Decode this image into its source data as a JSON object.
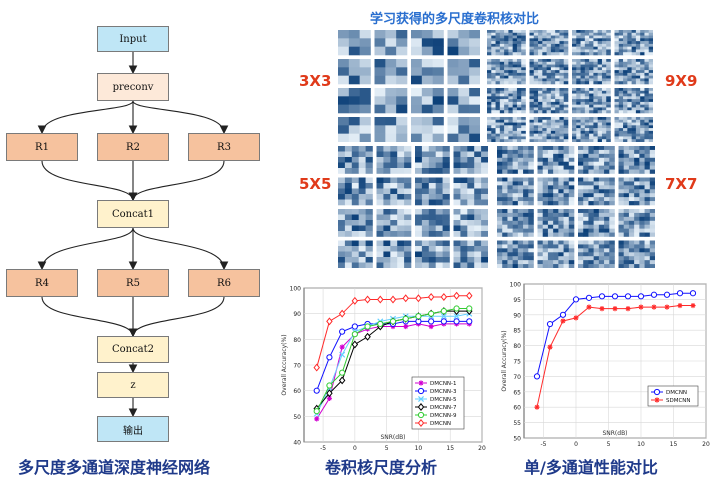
{
  "flowchart": {
    "input": "Input",
    "preconv": "preconv",
    "branches1": [
      "R1",
      "R2",
      "R3"
    ],
    "concat1": "Concat1",
    "branches2": [
      "R4",
      "R5",
      "R6"
    ],
    "concat2": "Concat2",
    "z": "z",
    "output": "输出"
  },
  "captions": {
    "network": "多尺度多通道深度神经网络",
    "kernel_analysis": "卷积核尺度分析",
    "channel_compare": "单/多通道性能对比"
  },
  "kernel_figure": {
    "title": "学习获得的多尺度卷积核对比",
    "labels": [
      "3X3",
      "9X9",
      "5X5",
      "7X7"
    ]
  },
  "colors": {
    "kernel_dark": "#0b3f78",
    "kernel_light": "#e6f0f8",
    "caption": "#1f3a8a",
    "kernel_label": "#e03a1a"
  },
  "chart_data": [
    {
      "type": "line",
      "x": [
        -6,
        -4,
        -2,
        0,
        2,
        4,
        6,
        8,
        10,
        12,
        14,
        16,
        18
      ],
      "xlabel": "SNR(dB)",
      "ylabel": "Overall Accuracy(%)",
      "xlim": [
        -8,
        20
      ],
      "ylim": [
        40,
        100
      ],
      "xticks": [
        -5,
        0,
        5,
        10,
        15,
        20
      ],
      "yticks": [
        40,
        50,
        60,
        70,
        80,
        90,
        100
      ],
      "legend_position": "bottom-right",
      "series": [
        {
          "name": "DMCNN-1",
          "color": "#d100d1",
          "marker": "star",
          "values": [
            49,
            57,
            77,
            82,
            84,
            85,
            85,
            85,
            86,
            85,
            86,
            86,
            86
          ]
        },
        {
          "name": "DMCNN-3",
          "color": "#1010ff",
          "marker": "circle",
          "values": [
            60,
            73,
            83,
            85,
            86,
            86,
            86,
            87,
            87,
            87,
            87,
            87,
            87
          ]
        },
        {
          "name": "DMCNN-5",
          "color": "#66d0ff",
          "marker": "x",
          "values": [
            51,
            61,
            74,
            83,
            85,
            87,
            88,
            89,
            89,
            89,
            89,
            89,
            90
          ]
        },
        {
          "name": "DMCNN-7",
          "color": "#000000",
          "marker": "diamond",
          "values": [
            53,
            59,
            64,
            78,
            81,
            85,
            87,
            88,
            89,
            90,
            91,
            91,
            91
          ]
        },
        {
          "name": "DMCNN-9",
          "color": "#33cc33",
          "marker": "circle",
          "values": [
            52,
            62,
            67,
            82,
            85,
            86,
            87,
            88,
            89,
            90,
            91,
            92,
            92
          ]
        },
        {
          "name": "DMCNN",
          "color": "#ff2a2a",
          "marker": "diamond",
          "values": [
            69,
            87,
            90,
            95,
            95.5,
            95.5,
            95.5,
            96,
            96,
            96.5,
            96.5,
            97,
            97
          ]
        }
      ]
    },
    {
      "type": "line",
      "x": [
        -6,
        -4,
        -2,
        0,
        2,
        4,
        6,
        8,
        10,
        12,
        14,
        16,
        18
      ],
      "xlabel": "SNR(dB)",
      "ylabel": "Overall Accuracy(%)",
      "xlim": [
        -8,
        20
      ],
      "ylim": [
        50,
        100
      ],
      "xticks": [
        -5,
        0,
        5,
        10,
        15,
        20
      ],
      "yticks": [
        50,
        55,
        60,
        65,
        70,
        75,
        80,
        85,
        90,
        95,
        100
      ],
      "legend_position": "right",
      "series": [
        {
          "name": "DMCNN",
          "color": "#1010ff",
          "marker": "circle",
          "values": [
            70,
            87,
            90,
            95,
            95.5,
            96,
            96,
            96,
            96,
            96.5,
            96.5,
            97,
            97
          ]
        },
        {
          "name": "SDMCNN",
          "color": "#ff2a2a",
          "marker": "star",
          "values": [
            60,
            79.5,
            88,
            89,
            92.5,
            92,
            92,
            92,
            92.5,
            92.5,
            92.5,
            93,
            93
          ]
        }
      ]
    }
  ]
}
